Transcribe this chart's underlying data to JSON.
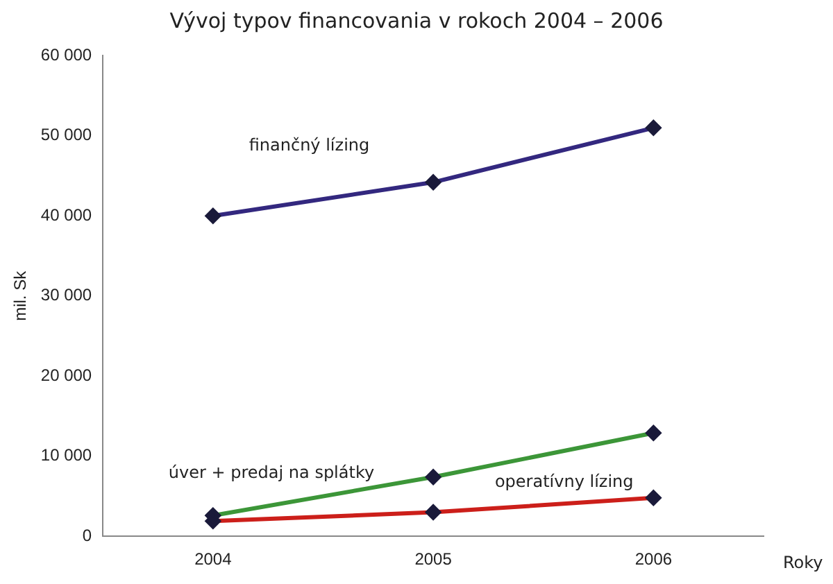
{
  "chart_data": {
    "type": "line",
    "title": "Vývoj typov financovania v rokoch 2004 – 2006",
    "xlabel": "Roky",
    "ylabel": "mil. Sk",
    "categories": [
      "2004",
      "2005",
      "2006"
    ],
    "series": [
      {
        "name": "finančný lízing",
        "color": "#33287f",
        "values": [
          40000,
          44200,
          51000
        ]
      },
      {
        "name": "úver + predaj na splátky",
        "color": "#3c9638",
        "values": [
          2600,
          7400,
          12900
        ]
      },
      {
        "name": "operatívny lízing",
        "color": "#cc1f1a",
        "values": [
          1900,
          3000,
          4800
        ]
      }
    ],
    "ylim": [
      0,
      60000
    ],
    "yticks": [
      {
        "value": 0,
        "label": "0"
      },
      {
        "value": 10000,
        "label": "10 000"
      },
      {
        "value": 20000,
        "label": "20 000"
      },
      {
        "value": 30000,
        "label": "30 000"
      },
      {
        "value": 40000,
        "label": "40 000"
      },
      {
        "value": 50000,
        "label": "50 000"
      },
      {
        "value": 60000,
        "label": "60 000"
      }
    ],
    "grid": false,
    "legend": false,
    "marker": "diamond",
    "line_style": "solid"
  }
}
